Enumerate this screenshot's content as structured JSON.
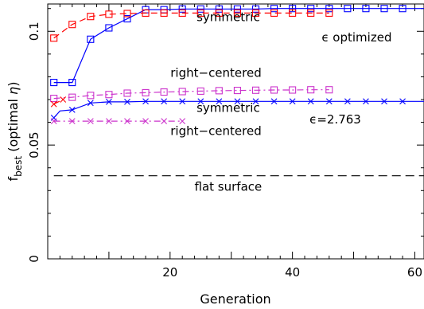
{
  "chart_data": {
    "type": "line",
    "xlabel": "Generation",
    "ylabel": {
      "main": "f",
      "subscript": "best",
      "rest": " (optimal ",
      "symbol": "η",
      "close": ")"
    },
    "xlim": [
      0,
      61.5
    ],
    "ylim": [
      0,
      0.112
    ],
    "x_ticks": [
      20,
      40,
      60
    ],
    "x_tick_labels": [
      "20",
      "40",
      "60"
    ],
    "y_ticks": [
      0,
      0.05,
      0.1
    ],
    "y_tick_labels": [
      "0",
      "0.05",
      "0.1"
    ],
    "grid": false,
    "annotations": [
      {
        "id": "symmetric-top",
        "text": "symmetric",
        "x": 29.5,
        "y": 0.1045
      },
      {
        "id": "eps-optimized",
        "text": "ϵ optimized",
        "x": 50.5,
        "y": 0.0955
      },
      {
        "id": "right-centered-top",
        "text": "right−centered",
        "x": 27.5,
        "y": 0.08
      },
      {
        "id": "symmetric-mid",
        "text": "symmetric",
        "x": 29.5,
        "y": 0.0645
      },
      {
        "id": "eps-value",
        "text": "ϵ=2.763",
        "x": 47,
        "y": 0.0595
      },
      {
        "id": "right-centered-bottom",
        "text": "right−centered",
        "x": 27.5,
        "y": 0.0545
      },
      {
        "id": "flat-surface",
        "text": "flat surface",
        "x": 29.5,
        "y": 0.03
      }
    ],
    "series": [
      {
        "id": "symmetric-optimized",
        "color": "#0000ff",
        "line": "solid",
        "marker": "square",
        "x": [
          1,
          4,
          7,
          10,
          13,
          16,
          19,
          22,
          25,
          28,
          31,
          34,
          37,
          40,
          43,
          46,
          49,
          52,
          55,
          58,
          61.5
        ],
        "y": [
          0.0775,
          0.0775,
          0.0965,
          0.1015,
          0.1055,
          0.1095,
          0.1095,
          0.1098,
          0.1098,
          0.1098,
          0.1098,
          0.1098,
          0.11,
          0.11,
          0.11,
          0.11,
          0.11,
          0.11,
          0.11,
          0.11,
          0.11
        ],
        "marker_x": [
          1,
          4,
          7,
          10,
          13,
          16,
          19,
          22,
          25,
          28,
          31,
          34,
          37,
          40,
          43,
          46,
          49,
          52,
          55,
          58
        ]
      },
      {
        "id": "right-centered-optimized",
        "color": "#ff0000",
        "line": "dashed",
        "marker": "square",
        "x": [
          1,
          4,
          7,
          10,
          13,
          16,
          19,
          22,
          25,
          28,
          31,
          34,
          37,
          40,
          43,
          46
        ],
        "y": [
          0.097,
          0.103,
          0.1065,
          0.1075,
          0.1078,
          0.108,
          0.108,
          0.108,
          0.108,
          0.108,
          0.108,
          0.108,
          0.108,
          0.108,
          0.108,
          0.108
        ]
      },
      {
        "id": "symmetric-fixed",
        "color": "#0000ff",
        "line": "solid",
        "marker": "x",
        "x": [
          1,
          2,
          4,
          7,
          10,
          13,
          16,
          19,
          22,
          25,
          28,
          31,
          34,
          37,
          40,
          43,
          46,
          49,
          52,
          55,
          58,
          61.5
        ],
        "y": [
          0.062,
          0.065,
          0.0655,
          0.0685,
          0.069,
          0.069,
          0.0692,
          0.0692,
          0.0692,
          0.0692,
          0.0692,
          0.0692,
          0.0692,
          0.0692,
          0.0692,
          0.0692,
          0.0692,
          0.0692,
          0.0692,
          0.0692,
          0.0692,
          0.0692
        ],
        "marker_x": [
          1,
          4,
          7,
          10,
          13,
          16,
          19,
          22,
          25,
          28,
          31,
          34,
          37,
          40,
          43,
          46,
          49,
          52,
          55,
          58
        ]
      },
      {
        "id": "right-centered-fixed-squares",
        "color": "#cc33cc",
        "line": "dashdot",
        "marker": "square",
        "x": [
          1,
          4,
          7,
          10,
          13,
          16,
          19,
          22,
          25,
          28,
          31,
          34,
          37,
          40,
          43,
          46
        ],
        "y": [
          0.0705,
          0.071,
          0.0718,
          0.0722,
          0.0728,
          0.073,
          0.0733,
          0.0735,
          0.0737,
          0.0739,
          0.074,
          0.0741,
          0.0742,
          0.0742,
          0.0743,
          0.0743
        ]
      },
      {
        "id": "right-centered-fixed-crosses",
        "color": "#cc33cc",
        "line": "dashdot",
        "marker": "x",
        "x": [
          1,
          4,
          7,
          10,
          13,
          16,
          19,
          22
        ],
        "y": [
          0.0605,
          0.0605,
          0.0605,
          0.0605,
          0.0605,
          0.0605,
          0.0605,
          0.0605
        ]
      },
      {
        "id": "flat-surface",
        "color": "#000000",
        "line": "longdash",
        "marker": "none",
        "x": [
          1,
          61.5
        ],
        "y": [
          0.0365,
          0.0365
        ]
      },
      {
        "id": "red-x-start",
        "color": "#ff0000",
        "line": "dashed",
        "marker": "x",
        "x": [
          1,
          2.5
        ],
        "y": [
          0.068,
          0.07
        ]
      }
    ]
  }
}
